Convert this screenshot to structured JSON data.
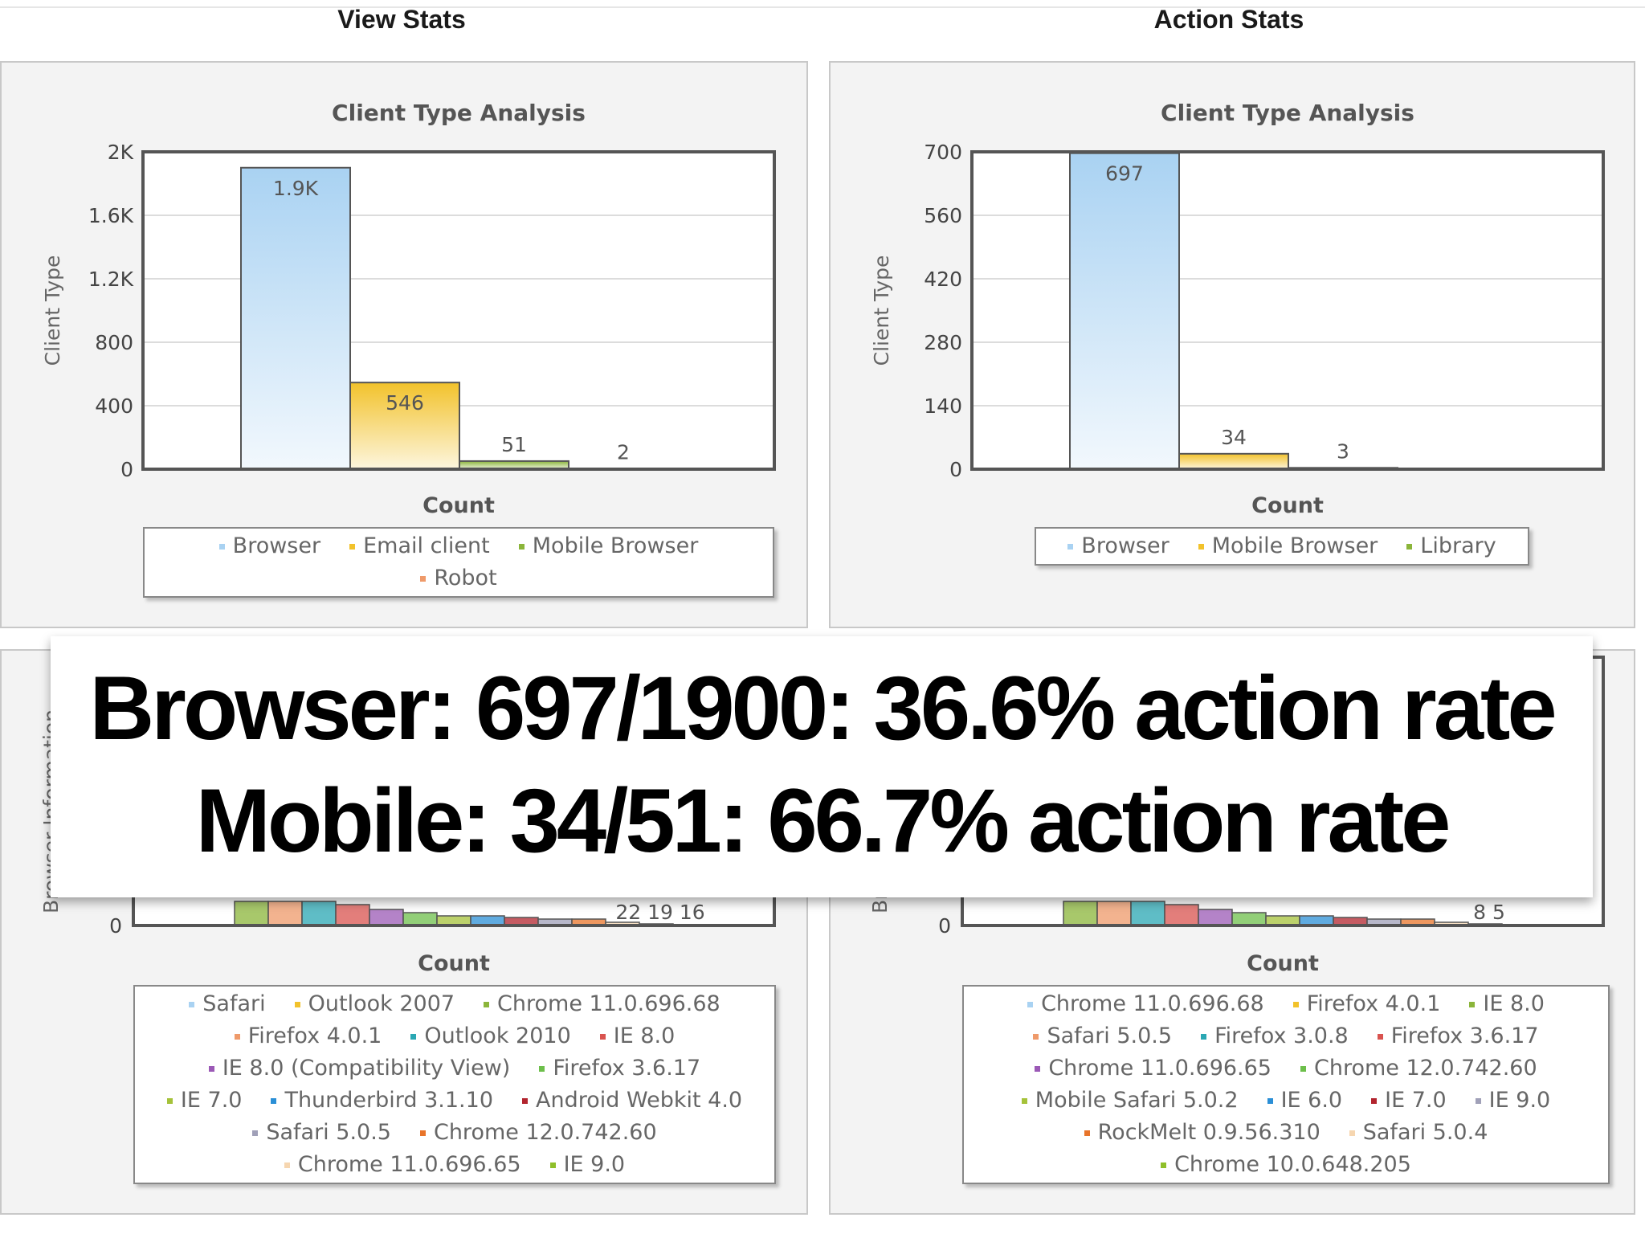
{
  "headers": {
    "view": "View Stats",
    "action": "Action Stats"
  },
  "overlay": {
    "line1": "Browser: 697/1900: 36.6% action rate",
    "line2": "Mobile: 34/51: 66.7% action rate"
  },
  "colors": {
    "browser": "#a9d2f2",
    "email": "#f2c22b",
    "mobile": "#8bb53a",
    "robot": "#ef9a6a"
  },
  "chart_data": [
    {
      "type": "bar",
      "title": "Client Type Analysis",
      "xlabel": "Count",
      "ylabel": "Client Type",
      "ylim": [
        0,
        2000
      ],
      "ytick_values": [
        0,
        400,
        800,
        1200,
        1600,
        2000
      ],
      "ytick_labels": [
        "0",
        "400",
        "800",
        "1.2K",
        "1.6K",
        "2K"
      ],
      "categories": [
        "Browser",
        "Email client",
        "Mobile Browser",
        "Robot"
      ],
      "values": [
        1900,
        546,
        51,
        2
      ],
      "data_labels": [
        "1.9K",
        "546",
        "51",
        "2"
      ],
      "legend_position": "bottom"
    },
    {
      "type": "bar",
      "title": "Client Type Analysis",
      "xlabel": "Count",
      "ylabel": "Client Type",
      "ylim": [
        0,
        700
      ],
      "ytick_values": [
        0,
        140,
        280,
        420,
        560,
        700
      ],
      "ytick_labels": [
        "0",
        "140",
        "280",
        "420",
        "560",
        "700"
      ],
      "categories": [
        "Browser",
        "Mobile Browser",
        "Library"
      ],
      "values": [
        697,
        34,
        3
      ],
      "data_labels": [
        "697",
        "34",
        "3"
      ],
      "legend_position": "bottom"
    },
    {
      "type": "bar",
      "xlabel": "Count",
      "ylabel": "Browser Information",
      "y_zero_label": "0",
      "visible_data_labels": "22  19  16",
      "categories": [
        "Safari",
        "Outlook 2007",
        "Chrome 11.0.696.68",
        "Firefox 4.0.1",
        "Outlook 2010",
        "IE 8.0",
        "IE 8.0 (Compatibility View)",
        "Firefox 3.6.17",
        "IE 7.0",
        "Thunderbird 3.1.10",
        "Android Webkit 4.0",
        "Safari 5.0.5",
        "Chrome 12.0.742.60",
        "Chrome 11.0.696.65",
        "IE 9.0"
      ],
      "legend_position": "bottom"
    },
    {
      "type": "bar",
      "xlabel": "Count",
      "ylabel": "Browser Information",
      "y_zero_label": "0",
      "visible_data_labels": "8  5",
      "categories": [
        "Chrome 11.0.696.68",
        "Firefox 4.0.1",
        "IE 8.0",
        "Safari 5.0.5",
        "Firefox 3.0.8",
        "Firefox 3.6.17",
        "Chrome 11.0.696.65",
        "Chrome 12.0.742.60",
        "Mobile Safari 5.0.2",
        "IE 6.0",
        "IE 7.0",
        "IE 9.0",
        "RockMelt 0.9.56.310",
        "Safari 5.0.4",
        "Chrome 10.0.648.205"
      ],
      "legend_position": "bottom"
    }
  ],
  "legends": [
    {
      "items": [
        {
          "label": "Browser",
          "color": "#a9d2f2"
        },
        {
          "label": "Email client",
          "color": "#f2c22b"
        },
        {
          "label": "Mobile Browser",
          "color": "#8bb53a"
        },
        {
          "label": "Robot",
          "color": "#ef9a6a"
        }
      ]
    },
    {
      "items": [
        {
          "label": "Browser",
          "color": "#a9d2f2"
        },
        {
          "label": "Mobile Browser",
          "color": "#f2c22b"
        },
        {
          "label": "Library",
          "color": "#8bb53a"
        }
      ]
    },
    {
      "items": [
        {
          "label": "Safari",
          "color": "#a9d2f2"
        },
        {
          "label": "Outlook 2007",
          "color": "#f2c22b"
        },
        {
          "label": "Chrome 11.0.696.68",
          "color": "#8bb53a"
        },
        {
          "label": "Firefox 4.0.1",
          "color": "#ef9a6a"
        },
        {
          "label": "Outlook 2010",
          "color": "#2aa7b3"
        },
        {
          "label": "IE 8.0",
          "color": "#d9534f"
        },
        {
          "label": "IE 8.0 (Compatibility View)",
          "color": "#9b59b6"
        },
        {
          "label": "Firefox 3.6.17",
          "color": "#6dbf4b"
        },
        {
          "label": "IE 7.0",
          "color": "#a5c23a"
        },
        {
          "label": "Thunderbird 3.1.10",
          "color": "#2b8fd6"
        },
        {
          "label": "Android Webkit 4.0",
          "color": "#b2242e"
        },
        {
          "label": "Safari 5.0.5",
          "color": "#a0a0b8"
        },
        {
          "label": "Chrome 12.0.742.60",
          "color": "#e8742a"
        },
        {
          "label": "Chrome 11.0.696.65",
          "color": "#f6d6b0"
        },
        {
          "label": "IE 9.0",
          "color": "#8fbf2a"
        }
      ]
    },
    {
      "items": [
        {
          "label": "Chrome 11.0.696.68",
          "color": "#a9d2f2"
        },
        {
          "label": "Firefox 4.0.1",
          "color": "#f2c22b"
        },
        {
          "label": "IE 8.0",
          "color": "#8bb53a"
        },
        {
          "label": "Safari 5.0.5",
          "color": "#ef9a6a"
        },
        {
          "label": "Firefox 3.0.8",
          "color": "#2aa7b3"
        },
        {
          "label": "Firefox 3.6.17",
          "color": "#d9534f"
        },
        {
          "label": "Chrome 11.0.696.65",
          "color": "#9b59b6"
        },
        {
          "label": "Chrome 12.0.742.60",
          "color": "#6dbf4b"
        },
        {
          "label": "Mobile Safari 5.0.2",
          "color": "#a5c23a"
        },
        {
          "label": "IE 6.0",
          "color": "#2b8fd6"
        },
        {
          "label": "IE 7.0",
          "color": "#b2242e"
        },
        {
          "label": "IE 9.0",
          "color": "#a0a0b8"
        },
        {
          "label": "RockMelt 0.9.56.310",
          "color": "#e8742a"
        },
        {
          "label": "Safari 5.0.4",
          "color": "#f6d6b0"
        },
        {
          "label": "Chrome 10.0.648.205",
          "color": "#8fbf2a"
        }
      ]
    }
  ]
}
